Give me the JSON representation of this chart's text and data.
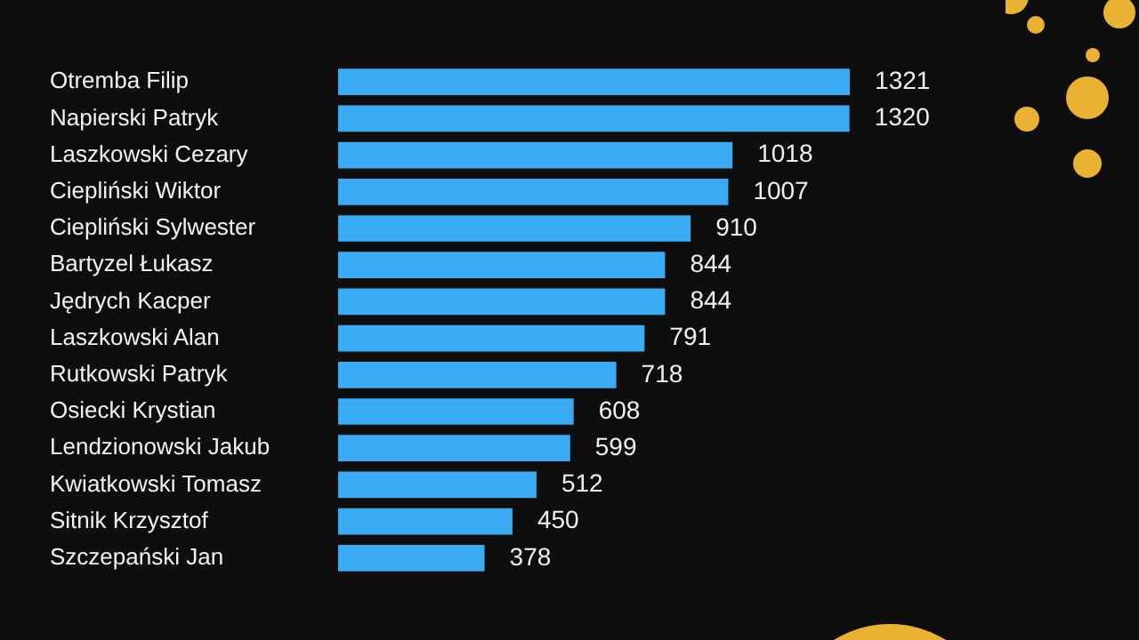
{
  "chart_data": {
    "type": "bar",
    "orientation": "horizontal",
    "categories": [
      "Otremba Filip",
      "Napierski Patryk",
      "Laszkowski Cezary",
      "Ciepliński Wiktor",
      "Ciepliński Sylwester",
      "Bartyzel Łukasz",
      "Jędrych Kacper",
      "Laszkowski Alan",
      "Rutkowski Patryk",
      "Osiecki Krystian",
      "Lendzionowski Jakub",
      "Kwiatkowski Tomasz",
      "Sitnik Krzysztof",
      "Szczepański Jan"
    ],
    "values": [
      1321,
      1320,
      1018,
      1007,
      910,
      844,
      844,
      791,
      718,
      608,
      599,
      512,
      450,
      378
    ],
    "color": "#3aaaf2",
    "data_labels": true,
    "legend": false,
    "tick_labels": "y"
  }
}
